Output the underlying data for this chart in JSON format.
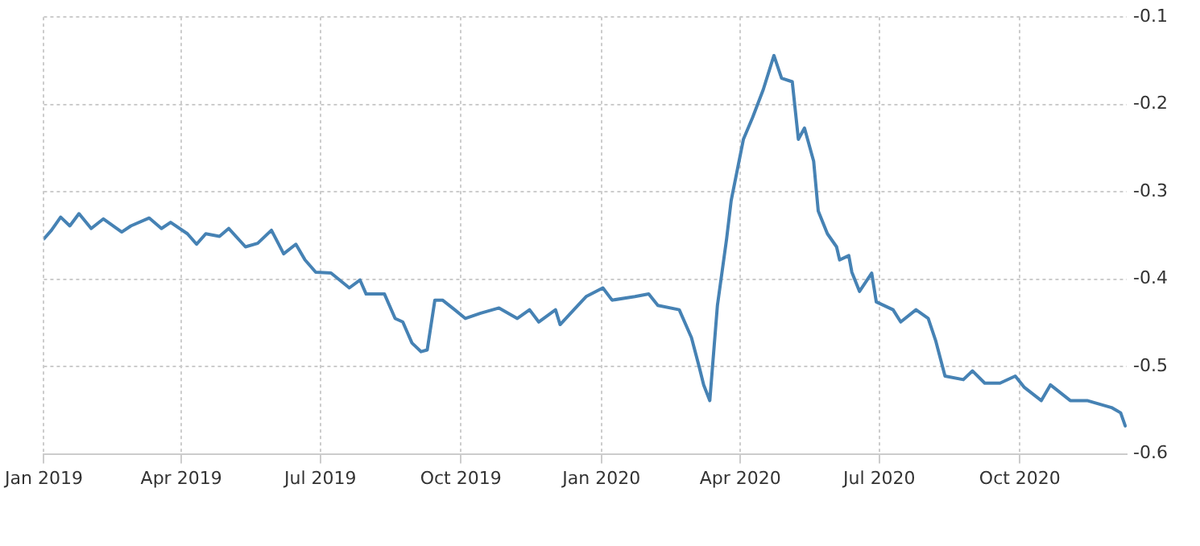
{
  "chart_data": {
    "type": "line",
    "grid": true,
    "legend": false,
    "marker": "none",
    "line_style": "solid",
    "xlim": [
      "2019-01-01",
      "2020-12-10"
    ],
    "xticks": [
      {
        "value": "2019-01-01",
        "label": "Jan 2019"
      },
      {
        "value": "2019-04-01",
        "label": "Apr 2019"
      },
      {
        "value": "2019-07-01",
        "label": "Jul 2019"
      },
      {
        "value": "2019-10-01",
        "label": "Oct 2019"
      },
      {
        "value": "2020-01-01",
        "label": "Jan 2020"
      },
      {
        "value": "2020-04-01",
        "label": "Apr 2020"
      },
      {
        "value": "2020-07-01",
        "label": "Jul 2020"
      },
      {
        "value": "2020-10-01",
        "label": "Oct 2020"
      }
    ],
    "ylim": [
      -0.6,
      -0.1
    ],
    "yticks": [
      -0.6,
      -0.5,
      -0.4,
      -0.3,
      -0.2,
      -0.1
    ],
    "x": [
      "2019-01-01",
      "2019-01-06",
      "2019-01-12",
      "2019-01-18",
      "2019-01-24",
      "2019-02-01",
      "2019-02-09",
      "2019-02-21",
      "2019-02-27",
      "2019-03-11",
      "2019-03-19",
      "2019-03-25",
      "2019-04-05",
      "2019-04-11",
      "2019-04-17",
      "2019-04-26",
      "2019-05-02",
      "2019-05-13",
      "2019-05-21",
      "2019-05-30",
      "2019-06-07",
      "2019-06-15",
      "2019-06-21",
      "2019-06-28",
      "2019-07-08",
      "2019-07-20",
      "2019-07-27",
      "2019-07-31",
      "2019-08-12",
      "2019-08-19",
      "2019-08-24",
      "2019-08-30",
      "2019-09-05",
      "2019-09-09",
      "2019-09-14",
      "2019-09-19",
      "2019-09-27",
      "2019-10-04",
      "2019-10-14",
      "2019-10-26",
      "2019-11-07",
      "2019-11-15",
      "2019-11-21",
      "2019-12-02",
      "2019-12-05",
      "2019-12-14",
      "2019-12-22",
      "2020-01-02",
      "2020-01-08",
      "2020-01-23",
      "2020-02-01",
      "2020-02-07",
      "2020-02-21",
      "2020-02-29",
      "2020-03-05",
      "2020-03-08",
      "2020-03-12",
      "2020-03-17",
      "2020-03-23",
      "2020-03-26",
      "2020-04-03",
      "2020-04-09",
      "2020-04-16",
      "2020-04-23",
      "2020-04-28",
      "2020-05-05",
      "2020-05-09",
      "2020-05-13",
      "2020-05-19",
      "2020-05-22",
      "2020-05-28",
      "2020-06-03",
      "2020-06-05",
      "2020-06-11",
      "2020-06-13",
      "2020-06-18",
      "2020-06-26",
      "2020-06-29",
      "2020-07-10",
      "2020-07-15",
      "2020-07-25",
      "2020-08-02",
      "2020-08-07",
      "2020-08-13",
      "2020-08-25",
      "2020-08-31",
      "2020-09-08",
      "2020-09-18",
      "2020-09-28",
      "2020-10-04",
      "2020-10-15",
      "2020-10-21",
      "2020-11-03",
      "2020-11-14",
      "2020-11-30",
      "2020-12-06",
      "2020-12-09"
    ],
    "series": [
      {
        "color": "#4682b4",
        "values": [
          -0.354,
          -0.344,
          -0.329,
          -0.339,
          -0.325,
          -0.342,
          -0.331,
          -0.346,
          -0.339,
          -0.33,
          -0.342,
          -0.335,
          -0.348,
          -0.36,
          -0.348,
          -0.351,
          -0.342,
          -0.363,
          -0.359,
          -0.344,
          -0.371,
          -0.36,
          -0.378,
          -0.392,
          -0.393,
          -0.41,
          -0.401,
          -0.417,
          -0.417,
          -0.445,
          -0.449,
          -0.473,
          -0.483,
          -0.481,
          -0.424,
          -0.424,
          -0.435,
          -0.445,
          -0.439,
          -0.433,
          -0.445,
          -0.435,
          -0.449,
          -0.435,
          -0.452,
          -0.435,
          -0.42,
          -0.41,
          -0.424,
          -0.42,
          -0.417,
          -0.43,
          -0.435,
          -0.467,
          -0.5,
          -0.521,
          -0.539,
          -0.43,
          -0.354,
          -0.31,
          -0.24,
          -0.215,
          -0.183,
          -0.144,
          -0.17,
          -0.174,
          -0.24,
          -0.227,
          -0.265,
          -0.322,
          -0.348,
          -0.363,
          -0.378,
          -0.373,
          -0.392,
          -0.414,
          -0.393,
          -0.426,
          -0.435,
          -0.449,
          -0.435,
          -0.445,
          -0.471,
          -0.511,
          -0.515,
          -0.505,
          -0.519,
          -0.519,
          -0.511,
          -0.524,
          -0.539,
          -0.521,
          -0.539,
          -0.539,
          -0.547,
          -0.553,
          -0.568
        ]
      }
    ]
  }
}
